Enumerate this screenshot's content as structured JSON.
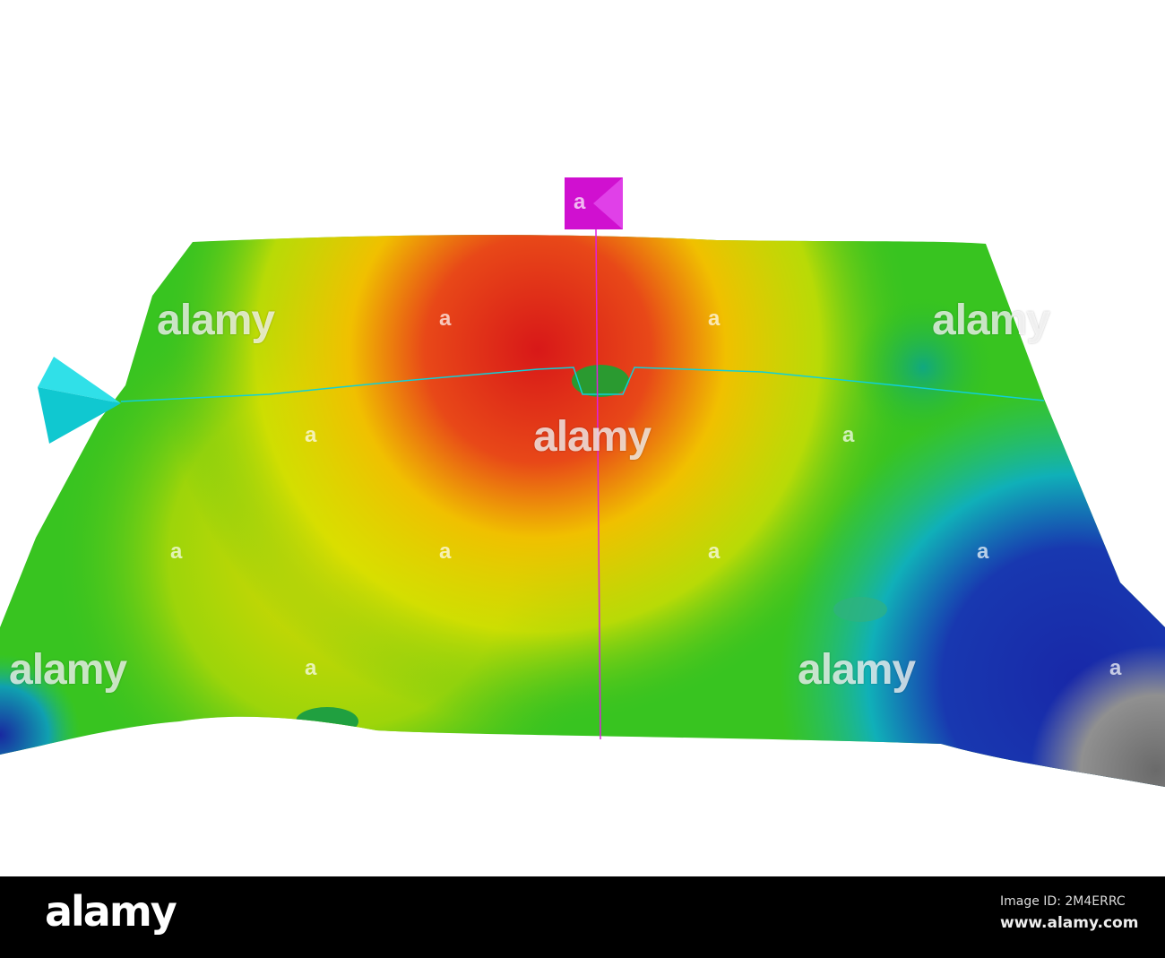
{
  "scene": {
    "colors": {
      "high": "#e0201a",
      "mid_high": "#f0d000",
      "mid": "#30c020",
      "low": "#10b0b0",
      "deep": "#1020a0",
      "deepest": "#808080",
      "marker_vertical": "#e020e0",
      "marker_profile": "#10d0d8"
    },
    "icons": [
      "magenta-square-marker-icon",
      "cyan-pyramid-marker-icon"
    ]
  },
  "watermark": {
    "text": "alamy",
    "letter": "a"
  },
  "footer": {
    "logo": "alamy",
    "image_id": "Image ID: 2M4ERRC",
    "url": "www.alamy.com"
  }
}
